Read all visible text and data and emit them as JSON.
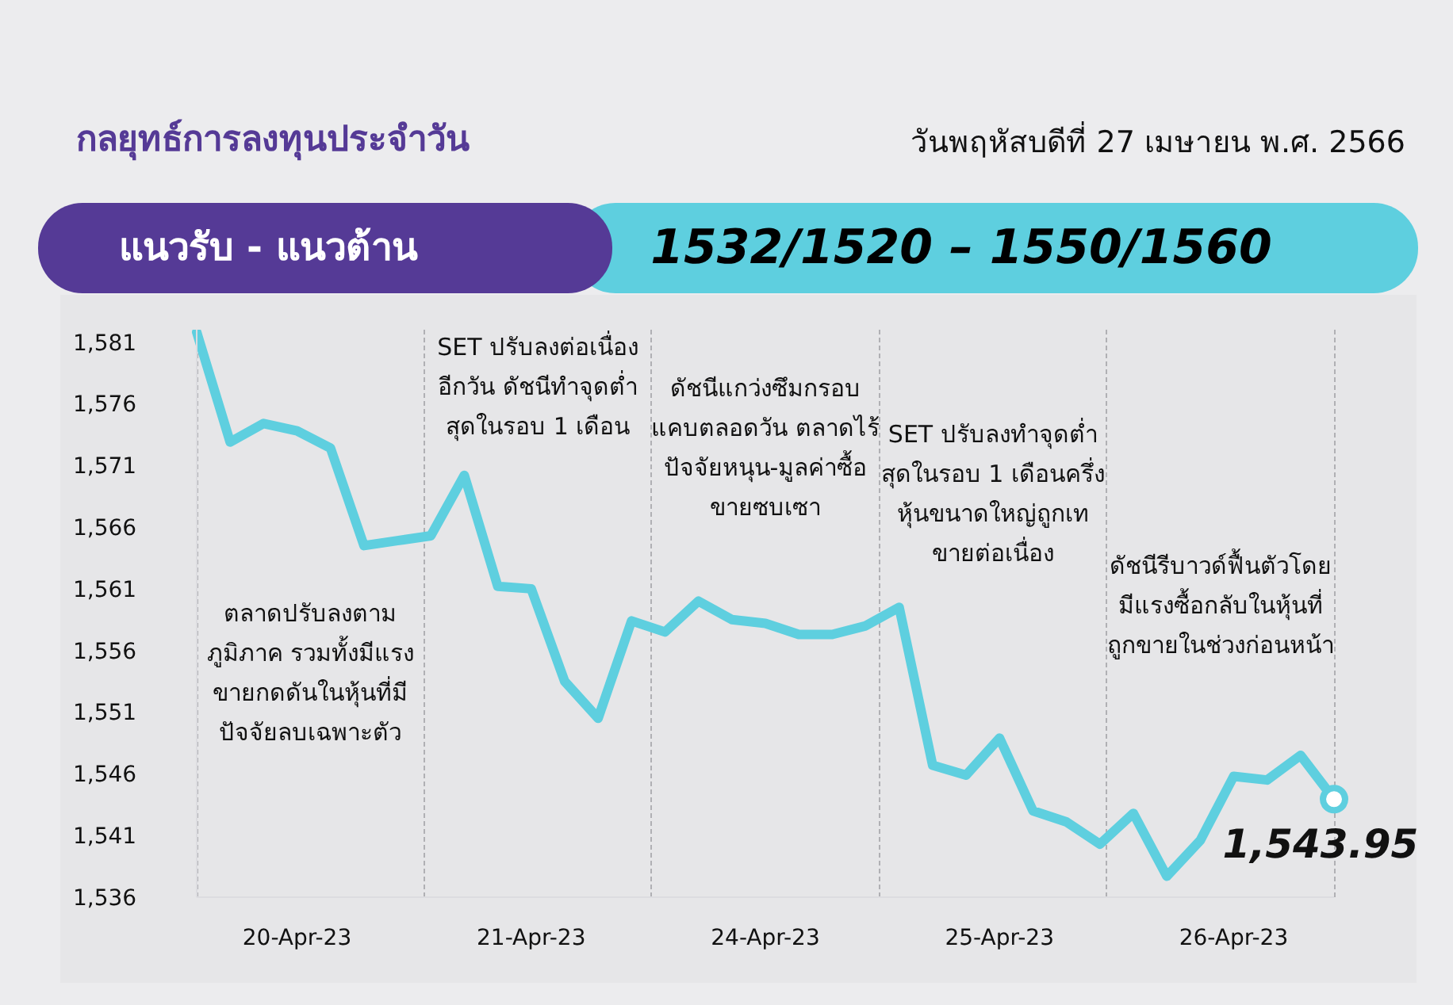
{
  "chart_data": {
    "type": "line",
    "title": "กลยุทธ์การลงทุนประจำวัน",
    "subtitle": "วันพฤหัสบดีที่ 27 เมษายน พ.ศ. 2566",
    "categories": [
      null,
      null,
      null,
      "20-Apr-23",
      null,
      null,
      null,
      null,
      null,
      null,
      "21-Apr-23",
      null,
      null,
      null,
      null,
      null,
      null,
      "24-Apr-23",
      null,
      null,
      null,
      null,
      null,
      null,
      "25-Apr-23",
      null,
      null,
      null,
      null,
      null,
      null,
      "26-Apr-23",
      null,
      null,
      null
    ],
    "series": [
      {
        "color": "#5ecfdf",
        "values": [
          1581.8,
          1572.9,
          1574.4,
          1573.8,
          1572.4,
          1564.5,
          1564.9,
          1565.3,
          1570.2,
          1561.2,
          1561.0,
          1553.5,
          1550.5,
          1558.4,
          1557.5,
          1560.0,
          1558.5,
          1558.2,
          1557.3,
          1557.3,
          1558.0,
          1559.5,
          1546.7,
          1545.9,
          1548.9,
          1543.0,
          1542.1,
          1540.3,
          1542.8,
          1537.7,
          1540.6,
          1545.8,
          1545.5,
          1547.5,
          1543.95
        ]
      }
    ],
    "ylim": [
      1536,
      1582
    ],
    "yticks": [
      {
        "value": 1536,
        "label": "1,536"
      },
      {
        "value": 1541,
        "label": "1,541"
      },
      {
        "value": 1546,
        "label": "1,546"
      },
      {
        "value": 1551,
        "label": "1,551"
      },
      {
        "value": 1556,
        "label": "1,556"
      },
      {
        "value": 1561,
        "label": "1,561"
      },
      {
        "value": 1566,
        "label": "1,566"
      },
      {
        "value": 1571,
        "label": "1,571"
      },
      {
        "value": 1576,
        "label": "1,576"
      },
      {
        "value": 1581,
        "label": "1,581"
      }
    ],
    "annotations": [
      "แนวรับ - แนวต้าน",
      "1532/1520 – 1550/1560",
      "ตลาดปรับลงตามภูมิภาค รวมทั้งมีแรงขายกดดันในหุ้นที่มีปัจจัยลบเฉพาะตัว",
      "SET ปรับลงต่อเนื่องอีกวัน ดัชนีทำจุดต่ำสุดในรอบ 1 เดือน",
      "ดัชนีแกว่งซึมกรอบแคบตลอดวัน ตลาดไร้ปัจจัยหนุน-มูลค่าซื้อขายซบเซา",
      "SET ปรับลงทำจุดต่ำสุดในรอบ 1 เดือนครึ่ง หุ้นขนาดใหญ่ถูกเทขายต่อเนื่อง",
      "ดัชนีรีบาวด์ฟื้นตัวโดยมีแรงซื้อกลับในหุ้นที่ถูกขายในช่วงก่อนหน้า",
      {
        "text": "1,543.95",
        "y": 1543.95
      }
    ],
    "grid": "x",
    "legend": false,
    "marker": "none",
    "line_style": "solid"
  }
}
